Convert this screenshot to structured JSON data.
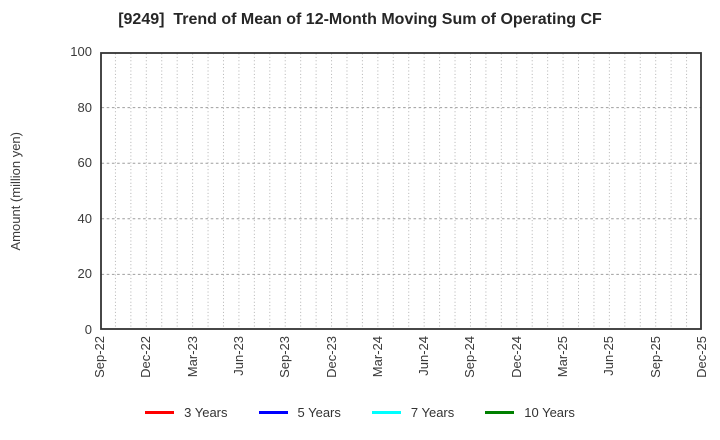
{
  "chart_data": {
    "type": "line",
    "title": "[9249]  Trend of Mean of 12-Month Moving Sum of Operating CF",
    "ylabel": "Amount (million yen)",
    "xlabel": "",
    "ylim": [
      0,
      100
    ],
    "yticks": [
      0,
      20,
      40,
      60,
      80,
      100
    ],
    "x_tick_labels": [
      "Sep-22",
      "Dec-22",
      "Mar-23",
      "Jun-23",
      "Sep-23",
      "Dec-23",
      "Mar-24",
      "Jun-24",
      "Sep-24",
      "Dec-24",
      "Mar-25",
      "Jun-25",
      "Sep-25",
      "Dec-25"
    ],
    "x_months_total": 39,
    "x_months_per_tick": 3,
    "grid": {
      "vertical": "monthly, dotted",
      "horizontal": "dashed at y ticks 20/40/60/80"
    },
    "legend_position": "bottom-center",
    "series": [
      {
        "name": "3 Years",
        "color": "#ff0000",
        "values": []
      },
      {
        "name": "5 Years",
        "color": "#0000ff",
        "values": []
      },
      {
        "name": "7 Years",
        "color": "#00ffff",
        "values": []
      },
      {
        "name": "10 Years",
        "color": "#008000",
        "values": []
      }
    ],
    "note": "plot area is empty - no series data drawn"
  },
  "colors": {
    "background": "#ffffff",
    "spine": "#333333",
    "grid_vertical": "#b3b3b3",
    "grid_horizontal": "#9e9e9e",
    "tick_text": "#3a3a3a",
    "title_text": "#262626"
  }
}
